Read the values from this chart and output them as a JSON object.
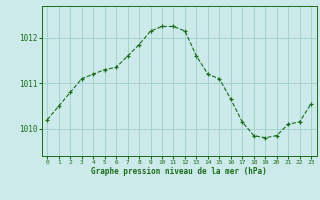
{
  "x": [
    0,
    1,
    2,
    3,
    4,
    5,
    6,
    7,
    8,
    9,
    10,
    11,
    12,
    13,
    14,
    15,
    16,
    17,
    18,
    19,
    20,
    21,
    22,
    23
  ],
  "y": [
    1010.2,
    1010.5,
    1010.8,
    1011.1,
    1011.2,
    1011.3,
    1011.35,
    1011.6,
    1011.85,
    1012.15,
    1012.25,
    1012.25,
    1012.15,
    1011.6,
    1011.2,
    1011.1,
    1010.65,
    1010.15,
    1009.85,
    1009.8,
    1009.85,
    1010.1,
    1010.15,
    1010.55
  ],
  "line_color": "#1a6b1a",
  "marker": "+",
  "bg_color": "#cceaea",
  "grid_color": "#9fcece",
  "xlabel": "Graphe pression niveau de la mer (hPa)",
  "xlabel_color": "#1a6b1a",
  "tick_color": "#1a6b1a",
  "ylabel_ticks": [
    1010,
    1011,
    1012
  ],
  "ylim": [
    1009.4,
    1012.7
  ],
  "xlim": [
    -0.5,
    23.5
  ],
  "xticks": [
    0,
    1,
    2,
    3,
    4,
    5,
    6,
    7,
    8,
    9,
    10,
    11,
    12,
    13,
    14,
    15,
    16,
    17,
    18,
    19,
    20,
    21,
    22,
    23
  ]
}
